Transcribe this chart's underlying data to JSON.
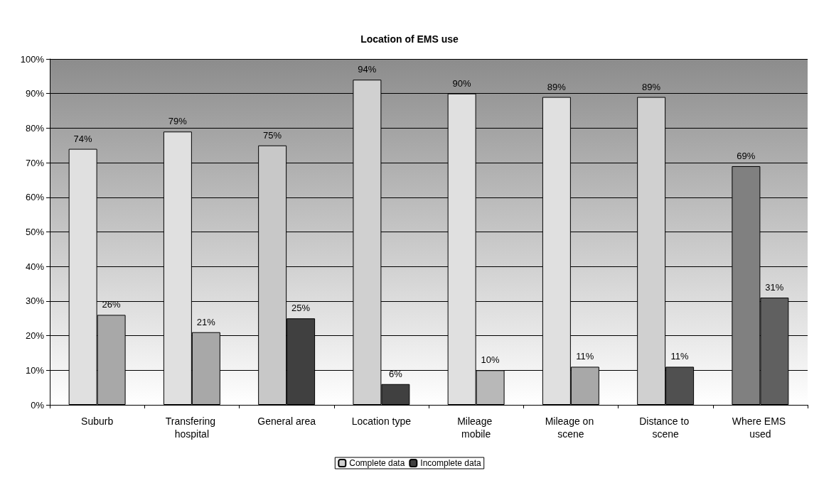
{
  "chart_data": {
    "type": "bar",
    "title": "Location of EMS use",
    "categories": [
      "Suburb",
      "Transfering hospital",
      "General area",
      "Location type",
      "Mileage mobile",
      "Mileage on scene",
      "Distance to scene",
      "Where EMS used"
    ],
    "series": [
      {
        "name": "Complete data",
        "color": "#d0d0d0",
        "colors": [
          "#e0e0e0",
          "#e0e0e0",
          "#c8c8c8",
          "#d0d0d0",
          "#e0e0e0",
          "#e0e0e0",
          "#d0d0d0",
          "#808080"
        ],
        "values": [
          74,
          79,
          75,
          94,
          90,
          89,
          89,
          69
        ],
        "value_labels": [
          "74%",
          "79%",
          "75%",
          "94%",
          "90%",
          "89%",
          "89%",
          "69%"
        ]
      },
      {
        "name": "Incomplete data",
        "color": "#404040",
        "colors": [
          "#a8a8a8",
          "#a8a8a8",
          "#404040",
          "#404040",
          "#b8b8b8",
          "#a8a8a8",
          "#505050",
          "#606060"
        ],
        "values": [
          26,
          21,
          25,
          6,
          10,
          11,
          11,
          31
        ],
        "value_labels": [
          "26%",
          "21%",
          "25%",
          "6%",
          "10%",
          "11%",
          "11%",
          "31%"
        ]
      }
    ],
    "ylim": [
      0,
      100
    ],
    "yticks": [
      {
        "value": 0,
        "label": "0%"
      },
      {
        "value": 10,
        "label": "10%"
      },
      {
        "value": 20,
        "label": "20%"
      },
      {
        "value": 30,
        "label": "30%"
      },
      {
        "value": 40,
        "label": "40%"
      },
      {
        "value": 50,
        "label": "50%"
      },
      {
        "value": 60,
        "label": "60%"
      },
      {
        "value": 70,
        "label": "70%"
      },
      {
        "value": 80,
        "label": "80%"
      },
      {
        "value": 90,
        "label": "90%"
      },
      {
        "value": 100,
        "label": "100%"
      }
    ],
    "grid": "y",
    "legend": "bottom"
  }
}
